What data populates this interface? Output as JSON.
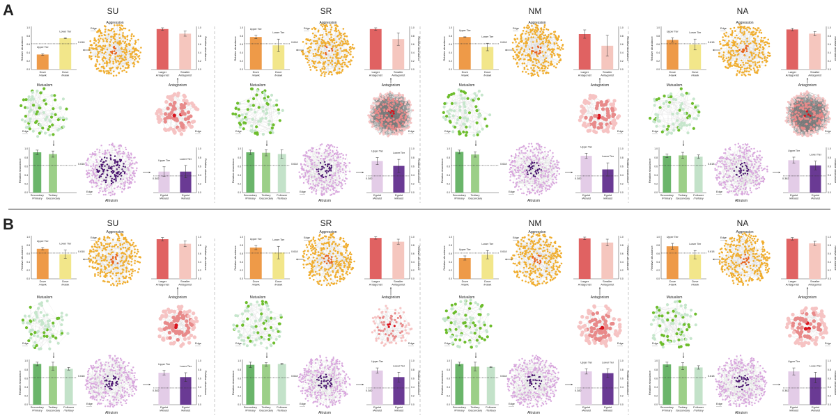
{
  "panel_labels": [
    "A",
    "B"
  ],
  "common": {
    "ylabel": "Relative abundance",
    "yticks": [
      "0.0",
      "0.2",
      "0.4",
      "0.6",
      "0.8",
      "1.0"
    ],
    "edge_label": "Edge",
    "network_labels": {
      "aggression": "Aggression",
      "mutualism": "Mutualism",
      "antagonism": "Antagonism",
      "altruism": "Altruism"
    },
    "tiers": [
      "Upper Tier",
      "Lower Tier"
    ],
    "categories": {
      "aggression": [
        [
          "Dove",
          "/Hawk"
        ],
        [
          "Dove",
          "/Hawk"
        ]
      ],
      "antagonism": [
        [
          "Larger",
          "Antagonist"
        ],
        [
          "Smaller",
          "Antagonist"
        ]
      ],
      "mutualism": [
        [
          "Secondary",
          "/Primary"
        ],
        [
          "Tertiary",
          "/Secondary"
        ],
        [
          "Follower",
          "/Tertiary"
        ]
      ],
      "altruism": [
        [
          "Egoist",
          "/Altruist"
        ],
        [
          "Egoist",
          "/Altruist"
        ]
      ]
    },
    "thresholds": {
      "aggression": "0.618",
      "mutualism": "0.618",
      "altruism": "0.382"
    }
  },
  "colors": {
    "aggression_bars": [
      "#ee9a48",
      "#f2e68a"
    ],
    "antagonism_bars": [
      "#e06262",
      "#f5c6be"
    ],
    "mutualism_bars": [
      "#6ab56a",
      "#9ccf88",
      "#c3e2c9"
    ],
    "altruism_bars": [
      "#e3cce7",
      "#6a3a94"
    ],
    "aggression_nodes": [
      "#f0ad2e",
      "#e8641e"
    ],
    "mutualism_nodes": [
      "#c6e6cc",
      "#6dbd2c"
    ],
    "antagonism_nodes": [
      "#f6c3c3",
      "#e88a8a",
      "#d8141e"
    ],
    "altruism_nodes": [
      "#d8a6dd",
      "#4a1470"
    ],
    "edges": "#cfcfcf"
  },
  "chart_data": [
    {
      "panel": "A",
      "title": "SU",
      "type": "bar",
      "ylim": [
        0,
        1
      ],
      "aggression": {
        "values": [
          0.36,
          0.75
        ],
        "errors": [
          0.02,
          0.01
        ],
        "threshold": 0.618
      },
      "antagonism": {
        "values": [
          0.97,
          0.86
        ],
        "errors": [
          0.03,
          0.06
        ]
      },
      "mutualism": {
        "values": [
          0.92,
          0.88
        ],
        "errors": [
          0.05,
          0.07
        ],
        "threshold": 0.618
      },
      "altruism": {
        "values": [
          0.48,
          0.48
        ],
        "errors": [
          0.11,
          0.14
        ],
        "threshold": 0.382
      }
    },
    {
      "panel": "A",
      "title": "SR",
      "type": "bar",
      "ylim": [
        0,
        1
      ],
      "aggression": {
        "values": [
          0.78,
          0.58
        ],
        "errors": [
          0.04,
          0.15
        ],
        "threshold": 0.618
      },
      "antagonism": {
        "values": [
          0.97,
          0.73
        ],
        "errors": [
          0.03,
          0.15
        ]
      },
      "mutualism": {
        "values": [
          0.92,
          0.91,
          0.88
        ],
        "errors": [
          0.05,
          0.07,
          0.1
        ],
        "threshold": 0.618
      },
      "altruism": {
        "values": [
          0.72,
          0.61
        ],
        "errors": [
          0.08,
          0.15
        ],
        "threshold": 0.382
      }
    },
    {
      "panel": "A",
      "title": "NM",
      "type": "bar",
      "ylim": [
        0,
        1
      ],
      "aggression": {
        "values": [
          0.78,
          0.54
        ],
        "errors": [
          0.005,
          0.09
        ],
        "threshold": 0.618
      },
      "antagonism": {
        "values": [
          0.85,
          0.57
        ],
        "errors": [
          0.1,
          0.25
        ]
      },
      "mutualism": {
        "values": [
          0.93,
          0.87
        ],
        "errors": [
          0.04,
          0.06
        ],
        "threshold": 0.618
      },
      "altruism": {
        "values": [
          0.84,
          0.53
        ],
        "errors": [
          0.06,
          0.15
        ],
        "threshold": 0.382
      }
    },
    {
      "panel": "A",
      "title": "NA",
      "type": "bar",
      "ylim": [
        0,
        1
      ],
      "aggression": {
        "values": [
          0.71,
          0.6
        ],
        "errors": [
          0.05,
          0.13
        ],
        "threshold": 0.618
      },
      "antagonism": {
        "values": [
          0.96,
          0.86
        ],
        "errors": [
          0.03,
          0.05
        ]
      },
      "mutualism": {
        "values": [
          0.84,
          0.85,
          0.82
        ],
        "errors": [
          0.04,
          0.07,
          0.04
        ],
        "threshold": 0.618
      },
      "altruism": {
        "values": [
          0.74,
          0.62
        ],
        "errors": [
          0.07,
          0.1
        ],
        "threshold": 0.382
      }
    },
    {
      "panel": "B",
      "title": "SU",
      "type": "bar",
      "ylim": [
        0,
        1
      ],
      "aggression": {
        "values": [
          0.72,
          0.59
        ],
        "errors": [
          0.03,
          0.1
        ],
        "threshold": 0.618
      },
      "antagonism": {
        "values": [
          0.95,
          0.84
        ],
        "errors": [
          0.04,
          0.07
        ]
      },
      "mutualism": {
        "values": [
          0.93,
          0.88,
          0.82
        ],
        "errors": [
          0.04,
          0.09,
          0.03
        ],
        "threshold": 0.618
      },
      "altruism": {
        "values": [
          0.73,
          0.63
        ],
        "errors": [
          0.05,
          0.1
        ],
        "threshold": 0.382
      }
    },
    {
      "panel": "B",
      "title": "SR",
      "type": "bar",
      "ylim": [
        0,
        1
      ],
      "aggression": {
        "values": [
          0.75,
          0.63
        ],
        "errors": [
          0.05,
          0.15
        ],
        "threshold": 0.618
      },
      "antagonism": {
        "values": [
          0.98,
          0.89
        ],
        "errors": [
          0.03,
          0.06
        ]
      },
      "mutualism": {
        "values": [
          0.91,
          0.92,
          0.93
        ],
        "errors": [
          0.06,
          0.04,
          0.01
        ],
        "threshold": 0.618
      },
      "altruism": {
        "values": [
          0.78,
          0.63
        ],
        "errors": [
          0.06,
          0.11
        ],
        "threshold": 0.382
      }
    },
    {
      "panel": "B",
      "title": "NM",
      "type": "bar",
      "ylim": [
        0,
        1
      ],
      "aggression": {
        "values": [
          0.5,
          0.58
        ],
        "errors": [
          0.05,
          0.1
        ],
        "threshold": 0.618
      },
      "antagonism": {
        "values": [
          0.97,
          0.87
        ],
        "errors": [
          0.03,
          0.08
        ]
      },
      "mutualism": {
        "values": [
          0.93,
          0.87,
          0.86
        ],
        "errors": [
          0.04,
          0.1,
          0.01
        ],
        "threshold": 0.618
      },
      "altruism": {
        "values": [
          0.76,
          0.72
        ],
        "errors": [
          0.06,
          0.1
        ],
        "threshold": 0.382
      }
    },
    {
      "panel": "B",
      "title": "NA",
      "type": "bar",
      "ylim": [
        0,
        1
      ],
      "aggression": {
        "values": [
          0.78,
          0.58
        ],
        "errors": [
          0.07,
          0.1
        ],
        "threshold": 0.618
      },
      "antagonism": {
        "values": [
          0.96,
          0.85
        ],
        "errors": [
          0.03,
          0.05
        ]
      },
      "mutualism": {
        "values": [
          0.92,
          0.88,
          0.85
        ],
        "errors": [
          0.05,
          0.08,
          0.04
        ],
        "threshold": 0.618
      },
      "altruism": {
        "values": [
          0.76,
          0.62
        ],
        "errors": [
          0.08,
          0.12
        ],
        "threshold": 0.382
      }
    }
  ]
}
